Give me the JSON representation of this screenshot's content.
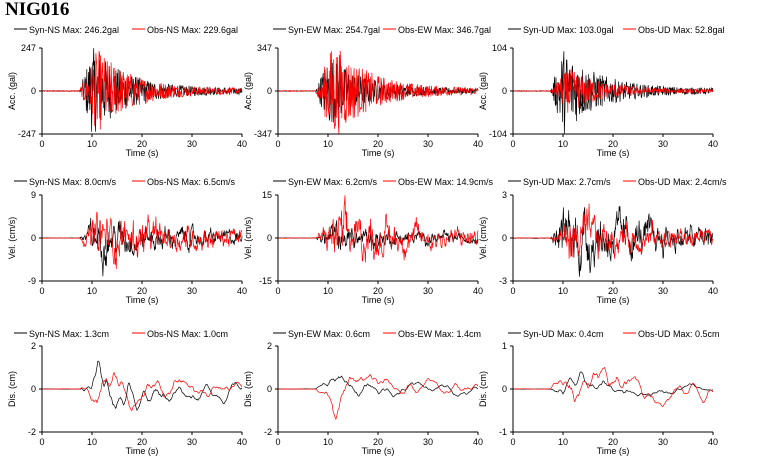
{
  "station": "NIG016",
  "colors": {
    "syn": "#000000",
    "obs": "#ff0000"
  },
  "chart_data": [
    {
      "type": "line",
      "row": 0,
      "col": 0,
      "ylabel": "Acc. (gal)",
      "xlabel": "Time (s)",
      "ylim": [
        -247,
        247
      ],
      "yticks": [
        "247",
        "0",
        "-247"
      ],
      "xlim": [
        0,
        40
      ],
      "xticks": [
        "0",
        "10",
        "20",
        "30",
        "40"
      ],
      "legend": [
        {
          "label": "Syn-NS  Max: 246.2gal",
          "color": "#000000"
        },
        {
          "label": "Obs-NS  Max: 229.6gal",
          "color": "#ff0000"
        }
      ],
      "series": [
        {
          "name": "Syn-NS",
          "peak": 246.2
        },
        {
          "name": "Obs-NS",
          "peak": 229.6
        }
      ]
    },
    {
      "type": "line",
      "row": 0,
      "col": 1,
      "ylabel": "Acc. (gal)",
      "xlabel": "Time (s)",
      "ylim": [
        -347,
        347
      ],
      "yticks": [
        "347",
        "0",
        "-347"
      ],
      "xlim": [
        0,
        40
      ],
      "xticks": [
        "0",
        "10",
        "20",
        "30",
        "40"
      ],
      "legend": [
        {
          "label": "Syn-EW  Max: 254.7gal",
          "color": "#000000"
        },
        {
          "label": "Obs-EW  Max: 346.7gal",
          "color": "#ff0000"
        }
      ],
      "series": [
        {
          "name": "Syn-EW",
          "peak": 254.7
        },
        {
          "name": "Obs-EW",
          "peak": 346.7
        }
      ]
    },
    {
      "type": "line",
      "row": 0,
      "col": 2,
      "ylabel": "Acc. (gal)",
      "xlabel": "Time (s)",
      "ylim": [
        -104,
        104
      ],
      "yticks": [
        "104",
        "0",
        "-104"
      ],
      "xlim": [
        0,
        40
      ],
      "xticks": [
        "0",
        "10",
        "20",
        "30",
        "40"
      ],
      "legend": [
        {
          "label": "Syn-UD  Max: 103.0gal",
          "color": "#000000"
        },
        {
          "label": "Obs-UD  Max: 52.8gal",
          "color": "#ff0000"
        }
      ],
      "series": [
        {
          "name": "Syn-UD",
          "peak": 103.0
        },
        {
          "name": "Obs-UD",
          "peak": 52.8
        }
      ]
    },
    {
      "type": "line",
      "row": 1,
      "col": 0,
      "ylabel": "Vel. (cm/s)",
      "xlabel": "Time (s)",
      "ylim": [
        -9,
        9
      ],
      "yticks": [
        "9",
        "0",
        "-9"
      ],
      "xlim": [
        0,
        40
      ],
      "xticks": [
        "0",
        "10",
        "20",
        "30",
        "40"
      ],
      "legend": [
        {
          "label": "Syn-NS  Max: 8.0cm/s",
          "color": "#000000"
        },
        {
          "label": "Obs-NS  Max: 6.5cm/s",
          "color": "#ff0000"
        }
      ],
      "series": [
        {
          "name": "Syn-NS",
          "peak": 8.0
        },
        {
          "name": "Obs-NS",
          "peak": 6.5
        }
      ]
    },
    {
      "type": "line",
      "row": 1,
      "col": 1,
      "ylabel": "Vel. (cm/s)",
      "xlabel": "Time (s)",
      "ylim": [
        -15,
        15
      ],
      "yticks": [
        "15",
        "0",
        "-15"
      ],
      "xlim": [
        0,
        40
      ],
      "xticks": [
        "0",
        "10",
        "20",
        "30",
        "40"
      ],
      "legend": [
        {
          "label": "Syn-EW  Max: 6.2cm/s",
          "color": "#000000"
        },
        {
          "label": "Obs-EW  Max: 14.9cm/s",
          "color": "#ff0000"
        }
      ],
      "series": [
        {
          "name": "Syn-EW",
          "peak": 6.2
        },
        {
          "name": "Obs-EW",
          "peak": 14.9
        }
      ]
    },
    {
      "type": "line",
      "row": 1,
      "col": 2,
      "ylabel": "Vel. (cm/s)",
      "xlabel": "Time (s)",
      "ylim": [
        -3,
        3
      ],
      "yticks": [
        "3",
        "0",
        "-3"
      ],
      "xlim": [
        0,
        40
      ],
      "xticks": [
        "0",
        "10",
        "20",
        "30",
        "40"
      ],
      "legend": [
        {
          "label": "Syn-UD  Max: 2.7cm/s",
          "color": "#000000"
        },
        {
          "label": "Obs-UD  Max: 2.4cm/s",
          "color": "#ff0000"
        }
      ],
      "series": [
        {
          "name": "Syn-UD",
          "peak": 2.7
        },
        {
          "name": "Obs-UD",
          "peak": 2.4
        }
      ]
    },
    {
      "type": "line",
      "row": 2,
      "col": 0,
      "ylabel": "Dis. (cm)",
      "xlabel": "Time (s)",
      "ylim": [
        -2,
        2
      ],
      "yticks": [
        "2",
        "0",
        "-2"
      ],
      "xlim": [
        0,
        40
      ],
      "xticks": [
        "0",
        "10",
        "20",
        "30",
        "40"
      ],
      "legend": [
        {
          "label": "Syn-NS  Max: 1.3cm",
          "color": "#000000"
        },
        {
          "label": "Obs-NS  Max: 1.0cm",
          "color": "#ff0000"
        }
      ],
      "series": [
        {
          "name": "Syn-NS",
          "peak": 1.3
        },
        {
          "name": "Obs-NS",
          "peak": 1.0
        }
      ]
    },
    {
      "type": "line",
      "row": 2,
      "col": 1,
      "ylabel": "Dis. (cm)",
      "xlabel": "Time (s)",
      "ylim": [
        -2,
        2
      ],
      "yticks": [
        "2",
        "0",
        "-2"
      ],
      "xlim": [
        0,
        40
      ],
      "xticks": [
        "0",
        "10",
        "20",
        "30",
        "40"
      ],
      "legend": [
        {
          "label": "Syn-EW  Max: 0.6cm",
          "color": "#000000"
        },
        {
          "label": "Obs-EW  Max: 1.4cm",
          "color": "#ff0000"
        }
      ],
      "series": [
        {
          "name": "Syn-EW",
          "peak": 0.6
        },
        {
          "name": "Obs-EW",
          "peak": 1.4
        }
      ]
    },
    {
      "type": "line",
      "row": 2,
      "col": 2,
      "ylabel": "Dis. (cm)",
      "xlabel": "Time (s)",
      "ylim": [
        -1,
        1
      ],
      "yticks": [
        "1",
        "0",
        "-1"
      ],
      "xlim": [
        0,
        40
      ],
      "xticks": [
        "0",
        "10",
        "20",
        "30",
        "40"
      ],
      "legend": [
        {
          "label": "Syn-UD  Max: 0.4cm",
          "color": "#000000"
        },
        {
          "label": "Obs-UD  Max: 0.5cm",
          "color": "#ff0000"
        }
      ],
      "series": [
        {
          "name": "Syn-UD",
          "peak": 0.4
        },
        {
          "name": "Obs-UD",
          "peak": 0.5
        }
      ]
    }
  ]
}
